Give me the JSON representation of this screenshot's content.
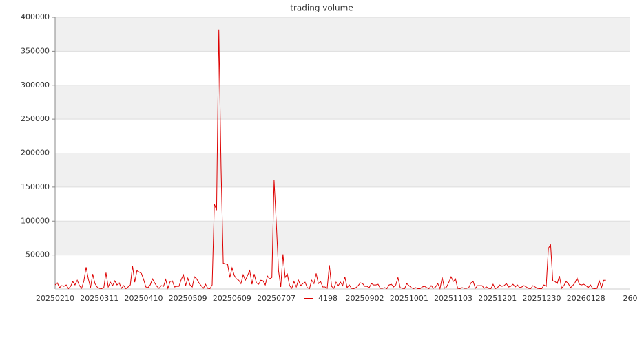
{
  "chart_data": {
    "type": "line",
    "title": "trading volume",
    "series": [
      {
        "name": "4198",
        "color": "#dd0000",
        "values": [
          6000,
          9000,
          2000,
          5000,
          4000,
          6000,
          500,
          4000,
          11000,
          6000,
          13000,
          5000,
          1000,
          12000,
          32000,
          15000,
          2000,
          22000,
          8000,
          3000,
          1000,
          500,
          2000,
          24000,
          3000,
          10000,
          5000,
          12000,
          6000,
          9000,
          1000,
          5000,
          500,
          3000,
          6000,
          34000,
          10000,
          27000,
          25000,
          23000,
          14000,
          3000,
          2000,
          6000,
          15000,
          9000,
          4000,
          1000,
          5000,
          4000,
          14000,
          1000,
          11000,
          12000,
          3000,
          4000,
          4000,
          14000,
          21000,
          5000,
          16000,
          6000,
          3000,
          18000,
          15000,
          9000,
          5000,
          1000,
          7000,
          1000,
          500,
          6000,
          125000,
          116000,
          382000,
          180000,
          38000,
          37000,
          36000,
          17000,
          31000,
          20000,
          15000,
          13000,
          8000,
          21000,
          13000,
          20000,
          27000,
          7000,
          22000,
          9000,
          7000,
          13000,
          12000,
          6000,
          19000,
          15000,
          17000,
          160000,
          95000,
          27000,
          3000,
          51000,
          17000,
          22000,
          5000,
          1000,
          11000,
          3000,
          13000,
          5000,
          8000,
          10000,
          2000,
          500,
          13000,
          8000,
          23000,
          8000,
          11000,
          3000,
          3000,
          1000,
          35000,
          4000,
          1000,
          10000,
          5000,
          10000,
          5000,
          18000,
          2000,
          6000,
          1000,
          500,
          2000,
          5000,
          9000,
          8000,
          4000,
          4000,
          2000,
          8000,
          6000,
          6000,
          7000,
          1000,
          1000,
          2000,
          500,
          6000,
          7000,
          3000,
          6000,
          17000,
          2000,
          1000,
          500,
          8000,
          5000,
          2000,
          500,
          2000,
          500,
          500,
          3000,
          4000,
          2000,
          500,
          5000,
          1000,
          3000,
          8000,
          500,
          17000,
          1000,
          3000,
          10000,
          18000,
          11000,
          15000,
          1000,
          500,
          2000,
          1000,
          1000,
          2000,
          9000,
          11000,
          1000,
          5000,
          5000,
          5000,
          1000,
          3000,
          1000,
          500,
          7000,
          500,
          2000,
          6000,
          4000,
          5000,
          8000,
          3000,
          4000,
          7000,
          3000,
          6000,
          2000,
          3000,
          5000,
          3000,
          1000,
          500,
          5000,
          3000,
          1000,
          500,
          500,
          6000,
          4000,
          60000,
          65000,
          12000,
          11000,
          8000,
          19000,
          1000,
          5000,
          11000,
          8000,
          2000,
          5000,
          9000,
          16000,
          7000,
          6000,
          7000,
          5000,
          2000,
          6000,
          1000,
          500,
          1000,
          12000,
          2000,
          13000,
          13000
        ]
      }
    ],
    "xlim": [
      0,
      260
    ],
    "xticks": [
      {
        "value": 0,
        "label": "20250210"
      },
      {
        "value": 20,
        "label": "20250311"
      },
      {
        "value": 40,
        "label": "20250410"
      },
      {
        "value": 60,
        "label": "20250509"
      },
      {
        "value": 80,
        "label": "20250609"
      },
      {
        "value": 100,
        "label": "20250707"
      },
      {
        "value": 140,
        "label": "20250902"
      },
      {
        "value": 160,
        "label": "20251001"
      },
      {
        "value": 180,
        "label": "20251103"
      },
      {
        "value": 200,
        "label": "20251201"
      },
      {
        "value": 220,
        "label": "20251230"
      },
      {
        "value": 240,
        "label": "20260128"
      },
      {
        "value": 260,
        "label": "260"
      }
    ],
    "ylim": [
      0,
      400000
    ],
    "yticks": [
      50000,
      100000,
      150000,
      200000,
      250000,
      300000,
      350000,
      400000
    ],
    "grid": true,
    "legend": "bottom"
  }
}
